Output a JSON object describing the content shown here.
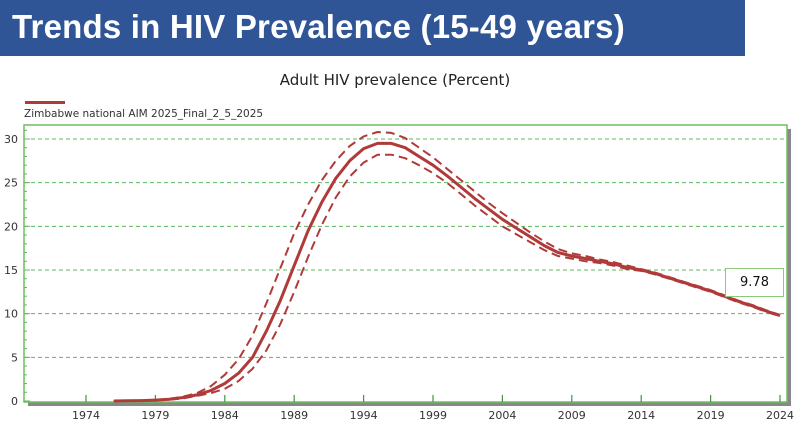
{
  "banner": {
    "title": "Trends in HIV Prevalence (15-49 years)",
    "color": "#2f5597"
  },
  "chart_data": {
    "type": "line",
    "title": "Adult HIV prevalence (Percent)",
    "xlabel": "",
    "ylabel": "",
    "xlim": [
      1970,
      2025
    ],
    "ylim": [
      0,
      31.5
    ],
    "xticks": [
      1974,
      1979,
      1984,
      1989,
      1994,
      1999,
      2004,
      2009,
      2014,
      2019,
      2024
    ],
    "yticks": [
      0,
      5,
      10,
      15,
      20,
      25,
      30
    ],
    "grid": "horizontal dashed",
    "legend": {
      "position": "top-left",
      "entries": [
        "Zimbabwe national AIM 2025_Final_2_5_2025"
      ]
    },
    "line_color": "#b03a3a",
    "grid_color": "#5cb85c",
    "annotation": {
      "text": "9.78",
      "x": 2024,
      "y": 9.78
    },
    "x": [
      1976,
      1977,
      1978,
      1979,
      1980,
      1981,
      1982,
      1983,
      1984,
      1985,
      1986,
      1987,
      1988,
      1989,
      1990,
      1991,
      1992,
      1993,
      1994,
      1995,
      1996,
      1997,
      1998,
      1999,
      2000,
      2001,
      2002,
      2003,
      2004,
      2005,
      2006,
      2007,
      2008,
      2009,
      2010,
      2011,
      2012,
      2013,
      2014,
      2015,
      2016,
      2017,
      2018,
      2019,
      2020,
      2021,
      2022,
      2023,
      2024
    ],
    "series": [
      {
        "name": "Zimbabwe national AIM 2025_Final_2_5_2025",
        "style": "solid",
        "values": [
          0,
          0.02,
          0.05,
          0.1,
          0.2,
          0.4,
          0.7,
          1.2,
          2,
          3.2,
          5,
          8,
          11.5,
          15.5,
          19.5,
          22.8,
          25.5,
          27.5,
          28.9,
          29.5,
          29.5,
          29,
          28,
          27,
          25.8,
          24.5,
          23.2,
          22,
          20.8,
          19.8,
          18.8,
          17.8,
          17,
          16.6,
          16.3,
          16,
          15.7,
          15.3,
          15,
          14.6,
          14.1,
          13.6,
          13.1,
          12.6,
          12,
          11.4,
          10.9,
          10.3,
          9.78
        ]
      },
      {
        "style": "dashed",
        "bound": "upper",
        "values": [
          0,
          0.02,
          0.05,
          0.12,
          0.25,
          0.5,
          0.9,
          1.7,
          3,
          4.8,
          7.5,
          11.2,
          15.2,
          19.2,
          22.5,
          25.3,
          27.5,
          29.2,
          30.3,
          30.8,
          30.7,
          30.1,
          29,
          27.9,
          26.6,
          25.3,
          24,
          22.7,
          21.5,
          20.4,
          19.3,
          18.3,
          17.4,
          16.9,
          16.6,
          16.2,
          15.9,
          15.5,
          15.1,
          14.7,
          14.2,
          13.7,
          13.2,
          12.7,
          12.1,
          11.5,
          11,
          10.4,
          9.85
        ]
      },
      {
        "style": "dashed",
        "bound": "lower",
        "values": [
          0,
          0.02,
          0.05,
          0.08,
          0.15,
          0.3,
          0.6,
          0.9,
          1.4,
          2.3,
          3.7,
          5.8,
          8.8,
          12.5,
          16.5,
          20.2,
          23.3,
          25.7,
          27.3,
          28.2,
          28.2,
          27.8,
          27,
          26.1,
          25,
          23.7,
          22.4,
          21.2,
          20,
          19.1,
          18.2,
          17.3,
          16.6,
          16.3,
          16,
          15.8,
          15.5,
          15.1,
          14.9,
          14.5,
          14,
          13.5,
          13,
          12.5,
          11.9,
          11.3,
          10.8,
          10.2,
          9.7
        ]
      }
    ]
  }
}
